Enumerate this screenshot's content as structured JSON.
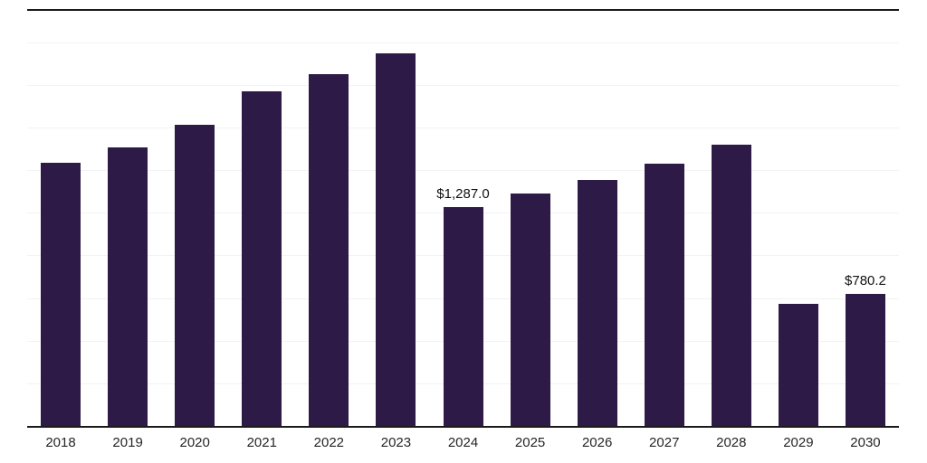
{
  "chart_data": {
    "type": "bar",
    "title": "",
    "xlabel": "",
    "ylabel": "",
    "categories": [
      "2018",
      "2019",
      "2020",
      "2021",
      "2022",
      "2023",
      "2024",
      "2025",
      "2026",
      "2027",
      "2028",
      "2029",
      "2030"
    ],
    "values": [
      1550,
      1640,
      1770,
      1965,
      2070,
      2190,
      1287.0,
      1370,
      1450,
      1545,
      1655,
      720,
      780.2
    ],
    "value_labels": [
      "",
      "",
      "",
      "",
      "",
      "",
      "$1,287.0",
      "",
      "",
      "",
      "",
      "",
      "$780.2"
    ],
    "ylim": [
      0,
      2450
    ],
    "gridline_step": 250,
    "grid": true,
    "legend": "none",
    "bar_color": "#2e1a47",
    "axis_color": "#1a1a1a",
    "gridline_color": "#f2f2f2",
    "label_color": "#111111",
    "tick_color": "#262626"
  }
}
